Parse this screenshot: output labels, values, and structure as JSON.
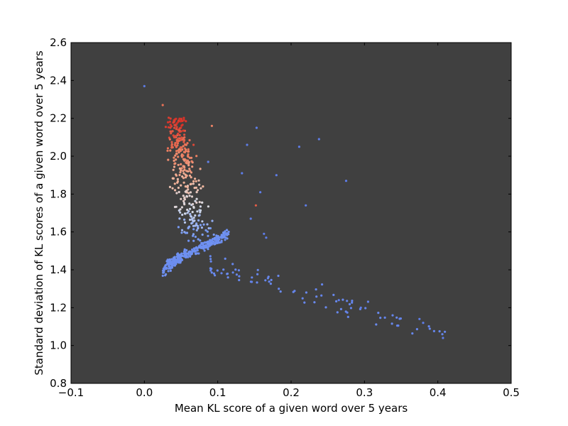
{
  "chart_data": {
    "type": "scatter",
    "title": "",
    "xlabel": "Mean KL score of a given word over 5 years",
    "ylabel": "Standard deviation of KL scores of a given word over 5 years",
    "xlim": [
      -0.1,
      0.5
    ],
    "ylim": [
      0.8,
      2.6
    ],
    "xticks": [
      -0.1,
      0.0,
      0.1,
      0.2,
      0.3,
      0.4,
      0.5
    ],
    "xtick_labels": [
      "−0.1",
      "0.0",
      "0.1",
      "0.2",
      "0.3",
      "0.4",
      "0.5"
    ],
    "yticks": [
      0.8,
      1.0,
      1.2,
      1.4,
      1.6,
      1.8,
      2.0,
      2.2,
      2.4,
      2.6
    ],
    "ytick_labels": [
      "0.8",
      "1.0",
      "1.2",
      "1.4",
      "1.6",
      "1.8",
      "2.0",
      "2.2",
      "2.4",
      "2.6"
    ],
    "grid": false,
    "background_color": "#404040",
    "colormap": "coolwarm",
    "color_range": [
      "#6688ee",
      "#dd3322"
    ],
    "clusters": [
      {
        "name": "diagonal band",
        "n": 240,
        "x_range": [
          0.03,
          0.115
        ],
        "y_start": 1.43,
        "y_end": 1.59,
        "spread": 0.02
      },
      {
        "name": "low lobe",
        "n": 80,
        "x_range": [
          0.025,
          0.05
        ],
        "y_start": 1.4,
        "y_end": 1.46,
        "spread": 0.03
      },
      {
        "name": "vertical column",
        "n": 320,
        "x_range": [
          0.03,
          0.08
        ],
        "y_range": [
          1.55,
          2.21
        ]
      },
      {
        "name": "tail",
        "n": 85,
        "x_range": [
          0.09,
          0.41
        ],
        "y_start": 1.43,
        "y_end": 1.05,
        "spread": 0.05
      }
    ],
    "outliers": [
      {
        "x": 0.0,
        "y": 2.37,
        "c": 0.05
      },
      {
        "x": 0.025,
        "y": 2.27,
        "c": 0.85
      },
      {
        "x": 0.092,
        "y": 2.16,
        "c": 0.8
      },
      {
        "x": 0.067,
        "y": 2.06,
        "c": 0.95
      },
      {
        "x": 0.087,
        "y": 1.97,
        "c": 0.1
      },
      {
        "x": 0.14,
        "y": 2.06,
        "c": 0.05
      },
      {
        "x": 0.153,
        "y": 2.15,
        "c": 0.05
      },
      {
        "x": 0.211,
        "y": 2.05,
        "c": 0.05
      },
      {
        "x": 0.238,
        "y": 2.09,
        "c": 0.05
      },
      {
        "x": 0.133,
        "y": 1.91,
        "c": 0.05
      },
      {
        "x": 0.18,
        "y": 1.9,
        "c": 0.05
      },
      {
        "x": 0.158,
        "y": 1.81,
        "c": 0.05
      },
      {
        "x": 0.275,
        "y": 1.87,
        "c": 0.05
      },
      {
        "x": 0.22,
        "y": 1.74,
        "c": 0.05
      },
      {
        "x": 0.152,
        "y": 1.74,
        "c": 0.9
      },
      {
        "x": 0.145,
        "y": 1.67,
        "c": 0.05
      },
      {
        "x": 0.163,
        "y": 1.59,
        "c": 0.05
      },
      {
        "x": 0.166,
        "y": 1.57,
        "c": 0.05
      },
      {
        "x": 0.375,
        "y": 1.14,
        "c": 0.05
      },
      {
        "x": 0.38,
        "y": 1.12,
        "c": 0.05
      },
      {
        "x": 0.407,
        "y": 1.04,
        "c": 0.05
      },
      {
        "x": 0.295,
        "y": 1.2,
        "c": 0.05
      },
      {
        "x": 0.265,
        "y": 1.24,
        "c": 0.05
      }
    ]
  }
}
